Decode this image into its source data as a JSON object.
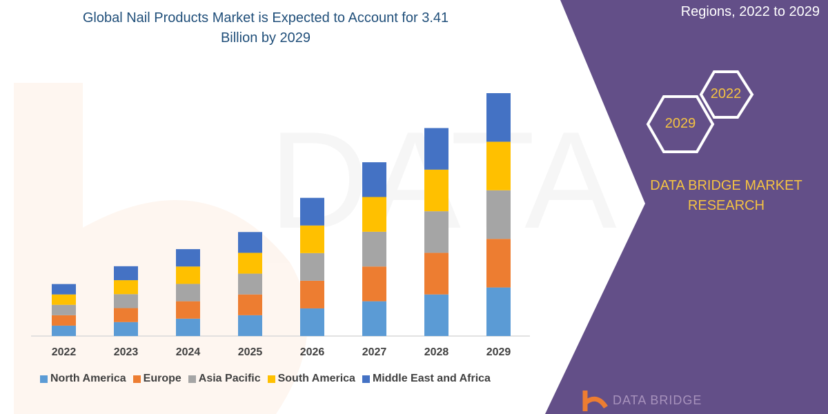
{
  "header": {
    "title_line1": "Global Nail Products Market is Expected to Account for 3.41",
    "title_line2": "Billion by 2029",
    "side_title": "Regions, 2022 to 2029"
  },
  "side_panel": {
    "hex_top": "2022",
    "hex_bottom": "2029",
    "brand_line1": "DATA BRIDGE MARKET",
    "brand_line2": "RESEARCH",
    "logo_text": "DATA BRIDGE",
    "panel_color": "#634f88",
    "accent_color": "#f5c342"
  },
  "chart_data": {
    "type": "bar",
    "stacked": true,
    "title": "Global Nail Products Market is Expected to Account for 3.41 Billion by 2029",
    "categories": [
      "2022",
      "2023",
      "2024",
      "2025",
      "2026",
      "2027",
      "2028",
      "2029"
    ],
    "series": [
      {
        "name": "North America",
        "color": "#5b9bd5",
        "values": [
          0.146,
          0.196,
          0.244,
          0.292,
          0.388,
          0.488,
          0.584,
          0.682
        ]
      },
      {
        "name": "Europe",
        "color": "#ed7d31",
        "values": [
          0.146,
          0.196,
          0.244,
          0.292,
          0.388,
          0.488,
          0.584,
          0.682
        ]
      },
      {
        "name": "Asia Pacific",
        "color": "#a5a5a5",
        "values": [
          0.146,
          0.196,
          0.244,
          0.292,
          0.388,
          0.488,
          0.584,
          0.682
        ]
      },
      {
        "name": "South America",
        "color": "#ffc000",
        "values": [
          0.146,
          0.196,
          0.244,
          0.292,
          0.388,
          0.488,
          0.584,
          0.682
        ]
      },
      {
        "name": "Middle East and Africa",
        "color": "#4472c4",
        "values": [
          0.146,
          0.196,
          0.244,
          0.292,
          0.388,
          0.488,
          0.584,
          0.682
        ]
      }
    ],
    "unit": "Billion",
    "ylim": [
      0,
      3.41
    ],
    "y_axis_shown": false,
    "grid": false,
    "legend": "bottom"
  }
}
